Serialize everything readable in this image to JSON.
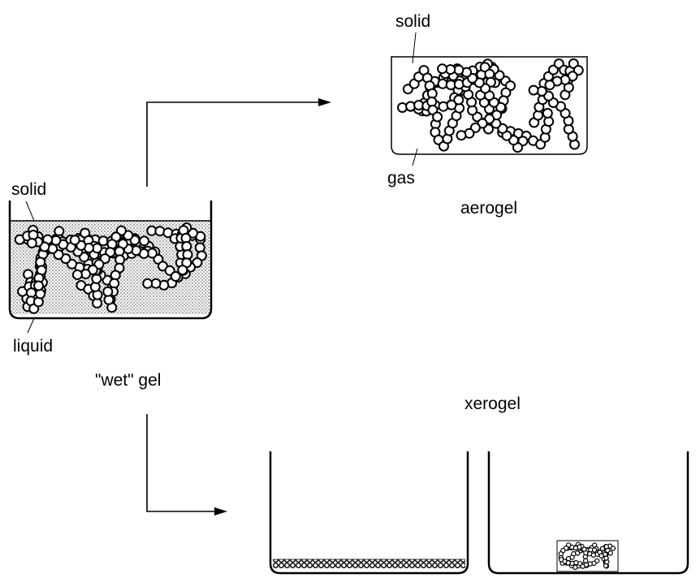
{
  "labels": {
    "aerogel_solid": "solid",
    "aerogel_gas": "gas",
    "aerogel": "aerogel",
    "wet_solid": "solid",
    "wet_liquid": "liquid",
    "wet_gel": "\"wet\" gel",
    "xerogel": "xerogel"
  },
  "colors": {
    "line": "#000000",
    "bead_fill": "#ffffff",
    "liquid_dots": "#808080"
  }
}
